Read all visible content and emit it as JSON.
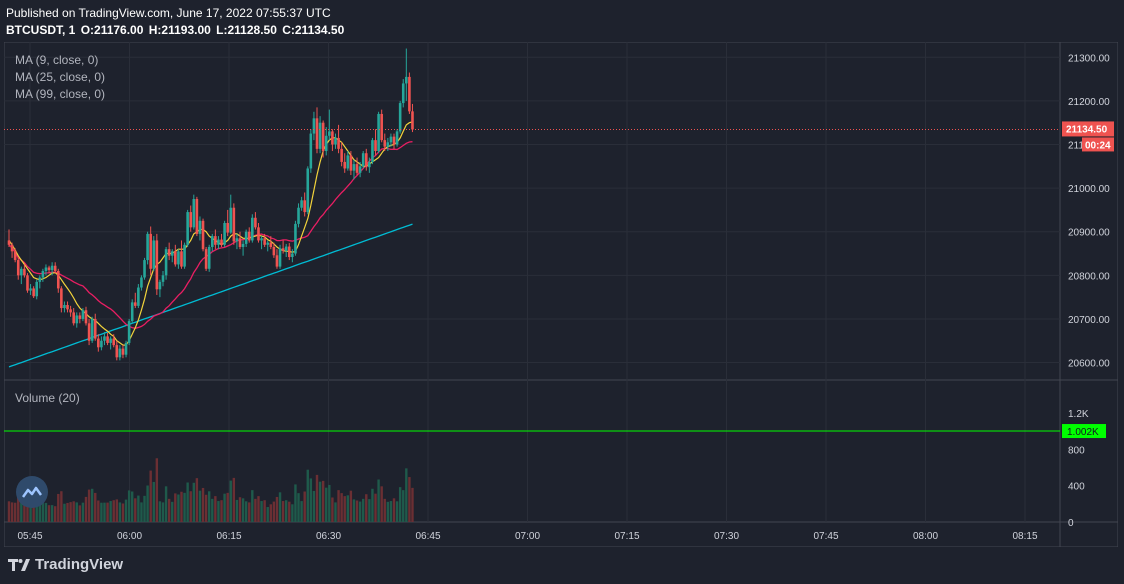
{
  "header": {
    "published": "Published on TradingView.com, June 17, 2022 07:55:37 UTC",
    "symbol": "BTCUSDT, 1",
    "o": "O:21176.00",
    "h": "H:21193.00",
    "l": "L:21128.50",
    "c": "C:21134.50"
  },
  "legends": {
    "ma9": "MA (9, close, 0)",
    "ma25": "MA (25, close, 0)",
    "ma99": "MA (99, close, 0)",
    "volume": "Volume (20)"
  },
  "price_badge": "21134.50",
  "countdown_badge": "00:24",
  "volume_badge": "1.002K",
  "footer": {
    "brand": "TradingView"
  },
  "colors": {
    "up": "#26a69a",
    "down": "#ef5350",
    "ma9": "#f2d33b",
    "ma25": "#e91e63",
    "ma99": "#00bcd4",
    "volume_line": "#00ff00",
    "price_line": "#ef5350"
  },
  "chart_data": {
    "type": "candlestick",
    "interval": "1 minute",
    "price_axis": {
      "ticks": [
        "20600.00",
        "20700.00",
        "20800.00",
        "20900.00",
        "21000.00",
        "21100.00",
        "21200.00",
        "21300.00"
      ],
      "range": [
        20560,
        21335
      ]
    },
    "volume_axis": {
      "ticks": [
        "0",
        "400",
        "800",
        "1.2K"
      ],
      "range": [
        0,
        1520
      ]
    },
    "time_axis": {
      "ticks": [
        "05:45",
        "06:00",
        "06:15",
        "06:30",
        "06:45",
        "07:00",
        "07:15",
        "07:30",
        "07:45",
        "08:00",
        "08:15"
      ]
    },
    "ohlc": [
      [
        20880,
        20905,
        20865,
        20870
      ],
      [
        20870,
        20875,
        20840,
        20855
      ],
      [
        20855,
        20862,
        20830,
        20835
      ],
      [
        20835,
        20840,
        20790,
        20800
      ],
      [
        20800,
        20820,
        20780,
        20815
      ],
      [
        20815,
        20825,
        20795,
        20800
      ],
      [
        20800,
        20805,
        20760,
        20765
      ],
      [
        20765,
        20780,
        20755,
        20770
      ],
      [
        20770,
        20775,
        20748,
        20752
      ],
      [
        20752,
        20790,
        20745,
        20785
      ],
      [
        20785,
        20800,
        20770,
        20795
      ],
      [
        20795,
        20815,
        20785,
        20810
      ],
      [
        20810,
        20825,
        20800,
        20818
      ],
      [
        20818,
        20822,
        20805,
        20812
      ],
      [
        20812,
        20830,
        20800,
        20822
      ],
      [
        20822,
        20830,
        20805,
        20810
      ],
      [
        20810,
        20815,
        20760,
        20770
      ],
      [
        20770,
        20775,
        20715,
        20725
      ],
      [
        20725,
        20740,
        20715,
        20732
      ],
      [
        20732,
        20740,
        20715,
        20722
      ],
      [
        20722,
        20730,
        20705,
        20715
      ],
      [
        20715,
        20725,
        20685,
        20690
      ],
      [
        20690,
        20715,
        20680,
        20708
      ],
      [
        20708,
        20715,
        20690,
        20700
      ],
      [
        20700,
        20725,
        20695,
        20720
      ],
      [
        20720,
        20728,
        20685,
        20690
      ],
      [
        20690,
        20700,
        20640,
        20650
      ],
      [
        20650,
        20705,
        20645,
        20700
      ],
      [
        20700,
        20712,
        20650,
        20655
      ],
      [
        20655,
        20665,
        20625,
        20635
      ],
      [
        20635,
        20660,
        20628,
        20650
      ],
      [
        20650,
        20670,
        20640,
        20660
      ],
      [
        20660,
        20668,
        20640,
        20645
      ],
      [
        20645,
        20660,
        20630,
        20655
      ],
      [
        20655,
        20665,
        20635,
        20640
      ],
      [
        20640,
        20650,
        20605,
        20612
      ],
      [
        20612,
        20640,
        20605,
        20632
      ],
      [
        20632,
        20640,
        20610,
        20618
      ],
      [
        20618,
        20650,
        20612,
        20645
      ],
      [
        20645,
        20700,
        20640,
        20695
      ],
      [
        20695,
        20745,
        20690,
        20738
      ],
      [
        20738,
        20760,
        20725,
        20730
      ],
      [
        20730,
        20780,
        20725,
        20772
      ],
      [
        20772,
        20800,
        20765,
        20795
      ],
      [
        20795,
        20840,
        20790,
        20835
      ],
      [
        20835,
        20900,
        20825,
        20895
      ],
      [
        20895,
        20912,
        20800,
        20815
      ],
      [
        20815,
        20890,
        20810,
        20880
      ],
      [
        20880,
        20895,
        20755,
        20768
      ],
      [
        20768,
        20790,
        20750,
        20785
      ],
      [
        20785,
        20810,
        20775,
        20800
      ],
      [
        20800,
        20865,
        20790,
        20860
      ],
      [
        20860,
        20875,
        20835,
        20845
      ],
      [
        20845,
        20860,
        20830,
        20855
      ],
      [
        20855,
        20870,
        20820,
        20825
      ],
      [
        20825,
        20860,
        20815,
        20855
      ],
      [
        20855,
        20880,
        20815,
        20820
      ],
      [
        20820,
        20875,
        20815,
        20870
      ],
      [
        20870,
        20950,
        20865,
        20945
      ],
      [
        20945,
        20960,
        20900,
        20910
      ],
      [
        20910,
        20985,
        20905,
        20975
      ],
      [
        20975,
        20980,
        20890,
        20895
      ],
      [
        20895,
        20935,
        20880,
        20925
      ],
      [
        20925,
        20930,
        20855,
        20860
      ],
      [
        20860,
        20865,
        20810,
        20815
      ],
      [
        20815,
        20870,
        20808,
        20865
      ],
      [
        20865,
        20895,
        20855,
        20890
      ],
      [
        20890,
        20905,
        20860,
        20870
      ],
      [
        20870,
        20890,
        20860,
        20882
      ],
      [
        20882,
        20895,
        20865,
        20870
      ],
      [
        20870,
        20925,
        20865,
        20920
      ],
      [
        20920,
        20950,
        20890,
        20898
      ],
      [
        20898,
        20985,
        20895,
        20955
      ],
      [
        20955,
        20965,
        20870,
        20878
      ],
      [
        20878,
        20895,
        20860,
        20885
      ],
      [
        20885,
        20900,
        20860,
        20865
      ],
      [
        20865,
        20880,
        20845,
        20872
      ],
      [
        20872,
        20905,
        20865,
        20900
      ],
      [
        20900,
        20910,
        20875,
        20880
      ],
      [
        20880,
        20940,
        20875,
        20932
      ],
      [
        20932,
        20945,
        20905,
        20910
      ],
      [
        20910,
        20920,
        20875,
        20880
      ],
      [
        20880,
        20890,
        20860,
        20885
      ],
      [
        20885,
        20895,
        20865,
        20870
      ],
      [
        20870,
        20880,
        20855,
        20875
      ],
      [
        20875,
        20890,
        20860,
        20865
      ],
      [
        20865,
        20875,
        20840,
        20846
      ],
      [
        20846,
        20860,
        20815,
        20820
      ],
      [
        20820,
        20870,
        20815,
        20862
      ],
      [
        20862,
        20880,
        20850,
        20856
      ],
      [
        20856,
        20872,
        20842,
        20866
      ],
      [
        20866,
        20874,
        20835,
        20842
      ],
      [
        20842,
        20860,
        20830,
        20850
      ],
      [
        20850,
        20925,
        20845,
        20918
      ],
      [
        20918,
        20965,
        20910,
        20955
      ],
      [
        20955,
        20980,
        20948,
        20972
      ],
      [
        20972,
        20990,
        20935,
        20945
      ],
      [
        20945,
        21050,
        20940,
        21045
      ],
      [
        21045,
        21135,
        21035,
        21125
      ],
      [
        21125,
        21175,
        21110,
        21160
      ],
      [
        21160,
        21185,
        21080,
        21090
      ],
      [
        21090,
        21165,
        21080,
        21150
      ],
      [
        21150,
        21155,
        21070,
        21085
      ],
      [
        21085,
        21140,
        21075,
        21120
      ],
      [
        21120,
        21180,
        21110,
        21130
      ],
      [
        21130,
        21135,
        21085,
        21100
      ],
      [
        21100,
        21125,
        21090,
        21115
      ],
      [
        21115,
        21145,
        21080,
        21090
      ],
      [
        21090,
        21105,
        21050,
        21060
      ],
      [
        21060,
        21080,
        21035,
        21045
      ],
      [
        21045,
        21085,
        21040,
        21075
      ],
      [
        21075,
        21085,
        21030,
        21040
      ],
      [
        21040,
        21065,
        21020,
        21055
      ],
      [
        21055,
        21070,
        21030,
        21035
      ],
      [
        21035,
        21060,
        21025,
        21050
      ],
      [
        21050,
        21085,
        21045,
        21080
      ],
      [
        21080,
        21090,
        21040,
        21048
      ],
      [
        21048,
        21070,
        21035,
        21060
      ],
      [
        21060,
        21115,
        21055,
        21110
      ],
      [
        21110,
        21135,
        21075,
        21085
      ],
      [
        21085,
        21175,
        21080,
        21170
      ],
      [
        21170,
        21180,
        21105,
        21110
      ],
      [
        21110,
        21125,
        21085,
        21095
      ],
      [
        21095,
        21115,
        21085,
        21105
      ],
      [
        21105,
        21125,
        21095,
        21118
      ],
      [
        21118,
        21125,
        21090,
        21100
      ],
      [
        21100,
        21135,
        21095,
        21130
      ],
      [
        21130,
        21200,
        21125,
        21195
      ],
      [
        21195,
        21250,
        21185,
        21240
      ],
      [
        21240,
        21320,
        21200,
        21255
      ],
      [
        21255,
        21265,
        21170,
        21176
      ],
      [
        21176,
        21193,
        21128.5,
        21134.5
      ]
    ],
    "ma9": [
      20880,
      20870,
      20858,
      20845,
      20835,
      20825,
      20815,
      20805,
      20795,
      20792,
      20790,
      20792,
      20795,
      20800,
      20805,
      20806,
      20800,
      20790,
      20780,
      20770,
      20760,
      20748,
      20735,
      20725,
      20718,
      20712,
      20705,
      20700,
      20697,
      20690,
      20683,
      20677,
      20672,
      20665,
      20660,
      20650,
      20645,
      20640,
      20640,
      20650,
      20665,
      20680,
      20698,
      20720,
      20745,
      20775,
      20795,
      20815,
      20825,
      20830,
      20840,
      20850,
      20850,
      20850,
      20855,
      20860,
      20860,
      20860,
      20870,
      20880,
      20895,
      20900,
      20905,
      20905,
      20900,
      20890,
      20885,
      20880,
      20875,
      20870,
      20875,
      20880,
      20890,
      20895,
      20895,
      20890,
      20885,
      20885,
      20885,
      20888,
      20890,
      20892,
      20890,
      20888,
      20882,
      20878,
      20872,
      20865,
      20860,
      20857,
      20855,
      20855,
      20853,
      20855,
      20870,
      20890,
      20910,
      20930,
      20960,
      20995,
      21030,
      21060,
      21085,
      21100,
      21110,
      21115,
      21115,
      21110,
      21105,
      21095,
      21085,
      21075,
      21065,
      21060,
      21055,
      21050,
      21050,
      21055,
      21060,
      21065,
      21070,
      21080,
      21090,
      21095,
      21098,
      21100,
      21105,
      21115,
      21130,
      21145,
      21150,
      21152
    ]
  }
}
